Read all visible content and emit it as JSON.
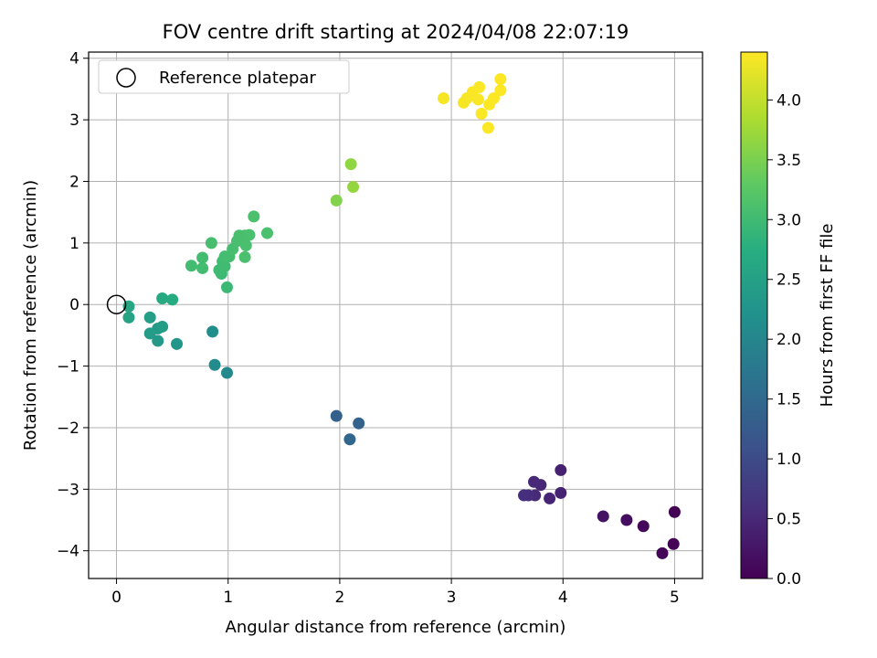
{
  "chart_data": {
    "type": "scatter",
    "title": "FOV centre drift starting at 2024/04/08 22:07:19",
    "xlabel": "Angular distance from reference (arcmin)",
    "ylabel": "Rotation from reference (arcmin)",
    "xlim": [
      -0.25,
      5.25
    ],
    "ylim": [
      -4.45,
      4.1
    ],
    "xticks": [
      0,
      1,
      2,
      3,
      4,
      5
    ],
    "yticks": [
      -4,
      -3,
      -2,
      -1,
      0,
      1,
      2,
      3,
      4
    ],
    "grid": true,
    "legend": {
      "placement": "upper-left",
      "label": "Reference platepar"
    },
    "reference_point": {
      "x": 0,
      "y": 0
    },
    "colorbar": {
      "label": "Hours from first FF file",
      "colormap": "viridis",
      "range": [
        0.0,
        4.4
      ],
      "ticks": [
        0.0,
        0.5,
        1.0,
        1.5,
        2.0,
        2.5,
        3.0,
        3.5,
        4.0
      ]
    },
    "points": [
      {
        "x": 5.0,
        "y": -3.37,
        "h": 0.0
      },
      {
        "x": 4.99,
        "y": -3.89,
        "h": 0.03
      },
      {
        "x": 4.89,
        "y": -4.04,
        "h": 0.05
      },
      {
        "x": 4.72,
        "y": -3.6,
        "h": 0.1
      },
      {
        "x": 4.57,
        "y": -3.5,
        "h": 0.15
      },
      {
        "x": 4.36,
        "y": -3.44,
        "h": 0.2
      },
      {
        "x": 3.98,
        "y": -2.69,
        "h": 0.4
      },
      {
        "x": 3.98,
        "y": -3.06,
        "h": 0.42
      },
      {
        "x": 3.88,
        "y": -3.15,
        "h": 0.45
      },
      {
        "x": 3.8,
        "y": -2.93,
        "h": 0.48
      },
      {
        "x": 3.74,
        "y": -2.88,
        "h": 0.5
      },
      {
        "x": 3.75,
        "y": -3.1,
        "h": 0.52
      },
      {
        "x": 3.69,
        "y": -3.1,
        "h": 0.55
      },
      {
        "x": 3.65,
        "y": -3.1,
        "h": 0.58
      },
      {
        "x": 1.97,
        "y": -1.81,
        "h": 1.35
      },
      {
        "x": 2.17,
        "y": -1.93,
        "h": 1.4
      },
      {
        "x": 2.09,
        "y": -2.19,
        "h": 1.45
      },
      {
        "x": 0.99,
        "y": -1.11,
        "h": 2.05
      },
      {
        "x": 0.88,
        "y": -0.98,
        "h": 2.1
      },
      {
        "x": 0.86,
        "y": -0.44,
        "h": 2.15
      },
      {
        "x": 0.54,
        "y": -0.64,
        "h": 2.3
      },
      {
        "x": 0.37,
        "y": -0.59,
        "h": 2.35
      },
      {
        "x": 0.37,
        "y": -0.39,
        "h": 2.38
      },
      {
        "x": 0.3,
        "y": -0.47,
        "h": 2.4
      },
      {
        "x": 0.41,
        "y": -0.36,
        "h": 2.42
      },
      {
        "x": 0.3,
        "y": -0.21,
        "h": 2.45
      },
      {
        "x": 0.11,
        "y": -0.21,
        "h": 2.55
      },
      {
        "x": 0.11,
        "y": -0.03,
        "h": 2.6
      },
      {
        "x": 0.41,
        "y": 0.1,
        "h": 2.65
      },
      {
        "x": 0.5,
        "y": 0.08,
        "h": 2.7
      },
      {
        "x": 0.99,
        "y": 0.28,
        "h": 2.95
      },
      {
        "x": 0.94,
        "y": 0.5,
        "h": 2.97
      },
      {
        "x": 0.92,
        "y": 0.56,
        "h": 2.98
      },
      {
        "x": 0.97,
        "y": 0.62,
        "h": 3.0
      },
      {
        "x": 0.95,
        "y": 0.7,
        "h": 3.0
      },
      {
        "x": 0.77,
        "y": 0.59,
        "h": 3.02
      },
      {
        "x": 0.67,
        "y": 0.63,
        "h": 3.03
      },
      {
        "x": 0.77,
        "y": 0.76,
        "h": 3.04
      },
      {
        "x": 0.97,
        "y": 0.78,
        "h": 3.05
      },
      {
        "x": 1.01,
        "y": 0.78,
        "h": 3.05
      },
      {
        "x": 1.04,
        "y": 0.9,
        "h": 3.06
      },
      {
        "x": 0.85,
        "y": 1.0,
        "h": 3.07
      },
      {
        "x": 1.08,
        "y": 1.03,
        "h": 3.08
      },
      {
        "x": 1.1,
        "y": 1.12,
        "h": 3.08
      },
      {
        "x": 1.15,
        "y": 1.12,
        "h": 3.09
      },
      {
        "x": 1.19,
        "y": 1.13,
        "h": 3.1
      },
      {
        "x": 1.16,
        "y": 0.96,
        "h": 3.1
      },
      {
        "x": 1.15,
        "y": 0.77,
        "h": 3.1
      },
      {
        "x": 1.23,
        "y": 1.43,
        "h": 3.12
      },
      {
        "x": 1.35,
        "y": 1.16,
        "h": 3.12
      },
      {
        "x": 1.97,
        "y": 1.69,
        "h": 3.55
      },
      {
        "x": 2.1,
        "y": 2.28,
        "h": 3.65
      },
      {
        "x": 2.12,
        "y": 1.91,
        "h": 3.67
      },
      {
        "x": 2.93,
        "y": 3.35,
        "h": 4.35
      },
      {
        "x": 3.11,
        "y": 3.28,
        "h": 4.36
      },
      {
        "x": 3.14,
        "y": 3.35,
        "h": 4.36
      },
      {
        "x": 3.19,
        "y": 3.45,
        "h": 4.37
      },
      {
        "x": 3.24,
        "y": 3.33,
        "h": 4.37
      },
      {
        "x": 3.25,
        "y": 3.53,
        "h": 4.38
      },
      {
        "x": 3.27,
        "y": 3.1,
        "h": 4.38
      },
      {
        "x": 3.33,
        "y": 2.87,
        "h": 4.38
      },
      {
        "x": 3.34,
        "y": 3.25,
        "h": 4.39
      },
      {
        "x": 3.38,
        "y": 3.35,
        "h": 4.39
      },
      {
        "x": 3.44,
        "y": 3.48,
        "h": 4.39
      },
      {
        "x": 3.44,
        "y": 3.66,
        "h": 4.4
      }
    ]
  }
}
